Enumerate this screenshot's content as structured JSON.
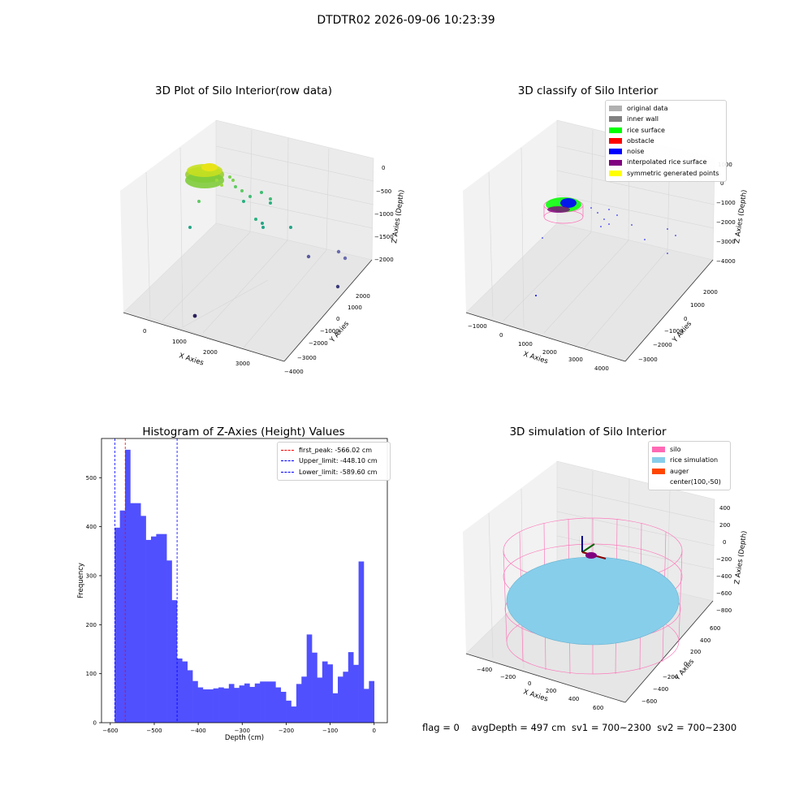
{
  "suptitle": "DTDTR02 2026-09-06 10:23:39",
  "panels": {
    "raw": {
      "title": "3D Plot of Silo Interior(row data)",
      "xlabel": "X Axies",
      "ylabel": "Y Axies",
      "zlabel": "Z Axies (Depth)",
      "xticks": [
        "0",
        "1000",
        "2000",
        "3000"
      ],
      "yticks": [
        "2000",
        "1000",
        "0",
        "−1000",
        "−2000",
        "−3000",
        "−4000"
      ],
      "zticks": [
        "0",
        "−500",
        "−1000",
        "−1500",
        "−2000"
      ]
    },
    "classify": {
      "title": "3D classify of Silo Interior",
      "xlabel": "X Axies",
      "ylabel": "Y Axies",
      "zlabel": "Z Axies (Depth)",
      "xticks": [
        "−1000",
        "0",
        "1000",
        "2000",
        "3000",
        "4000"
      ],
      "yticks": [
        "2000",
        "1000",
        "0",
        "−1000",
        "−2000",
        "−3000"
      ],
      "zticks": [
        "1000",
        "0",
        "−1000",
        "−2000",
        "−3000",
        "−4000"
      ],
      "legend": [
        {
          "label": "original data",
          "color": "#b0b0b0"
        },
        {
          "label": "inner wall",
          "color": "#808080"
        },
        {
          "label": "rice surface",
          "color": "#00ff00"
        },
        {
          "label": "obstacle",
          "color": "#ff0000"
        },
        {
          "label": "noise",
          "color": "#0000ff"
        },
        {
          "label": "interpolated rice surface",
          "color": "#800080"
        },
        {
          "label": "symmetric generated points",
          "color": "#ffff00"
        }
      ]
    },
    "simulation": {
      "title": "3D simulation of Silo Interior",
      "xlabel": "X Axies",
      "ylabel": "Y Axies",
      "zlabel": "Z Axies (Depth)",
      "xticks": [
        "−400",
        "−200",
        "0",
        "200",
        "400",
        "600"
      ],
      "yticks": [
        "600",
        "400",
        "200",
        "0",
        "−200",
        "−400",
        "−600"
      ],
      "zticks": [
        "400",
        "200",
        "0",
        "−200",
        "−400",
        "−600",
        "−800"
      ],
      "legend": [
        {
          "label": "silo",
          "color": "#ff69b4"
        },
        {
          "label": "rice simulation",
          "color": "#87ceeb"
        },
        {
          "label": "auger",
          "color": "#ff4500"
        },
        {
          "label": "center(100,-50)",
          "color": ""
        }
      ]
    }
  },
  "chart_data": {
    "type": "bar",
    "title": "Histogram of Z-Axies (Height) Values",
    "xlabel": "Depth (cm)",
    "ylabel": "Frequency",
    "xlim": [
      -620,
      30
    ],
    "ylim": [
      0,
      580
    ],
    "xticks": [
      -600,
      -500,
      -400,
      -300,
      -200,
      -100,
      0
    ],
    "yticks": [
      0,
      100,
      200,
      300,
      400,
      500
    ],
    "bar_color": "#5050ff",
    "bin_start": -590,
    "bin_width": 11.8,
    "values": [
      398,
      433,
      557,
      448,
      448,
      422,
      373,
      380,
      385,
      385,
      331,
      250,
      131,
      125,
      107,
      85,
      72,
      68,
      68,
      70,
      72,
      70,
      79,
      71,
      76,
      80,
      73,
      80,
      84,
      84,
      84,
      72,
      63,
      45,
      33,
      79,
      94,
      180,
      143,
      92,
      125,
      119,
      60,
      94,
      104,
      144,
      118,
      329,
      69,
      85
    ],
    "vlines": [
      {
        "label": "first_peak: -566.02 cm",
        "x": -566.02,
        "color": "#ff0000"
      },
      {
        "label": "Upper_limit: -448.10 cm",
        "x": -448.1,
        "color": "#0000ff"
      },
      {
        "label": "Lower_limit: -589.60 cm",
        "x": -589.6,
        "color": "#0000ff"
      }
    ]
  },
  "footer": "flag = 0    avgDepth = 497 cm  sv1 = 700~2300  sv2 = 700~2300"
}
